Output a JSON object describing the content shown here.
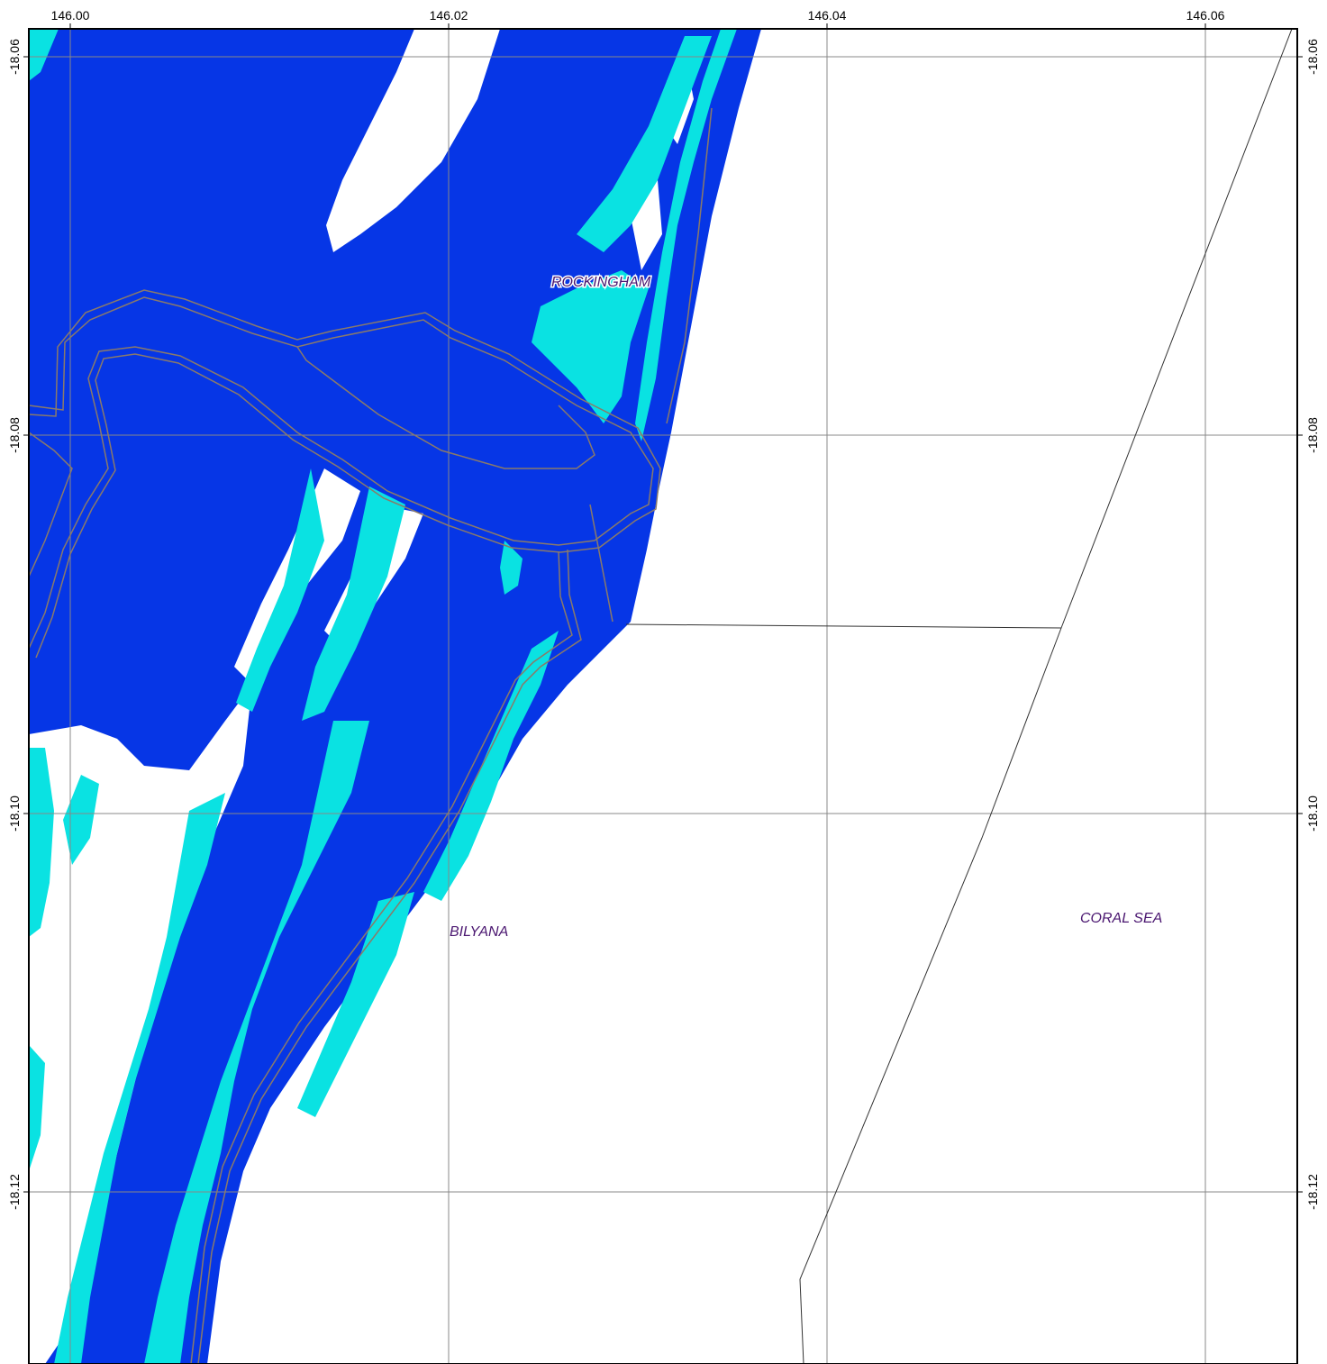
{
  "map": {
    "x_ticks": [
      "146.00",
      "146.02",
      "146.04",
      "146.06"
    ],
    "y_ticks": [
      "-18.06",
      "-18.08",
      "-18.10",
      "-18.12"
    ],
    "places": [
      {
        "id": "rockingham",
        "label": "ROCKINGHAM"
      },
      {
        "id": "bilyana",
        "label": "BILYANA"
      },
      {
        "id": "coral-sea",
        "label": "CORAL SEA"
      }
    ],
    "colors": {
      "deep_flood": "#0636e6",
      "shallow_flood": "#0ae2e2",
      "grid": "#888888",
      "road": "#8a7a6a",
      "boundary": "#333333",
      "label": "#4a1670",
      "frame": "#000000"
    }
  }
}
